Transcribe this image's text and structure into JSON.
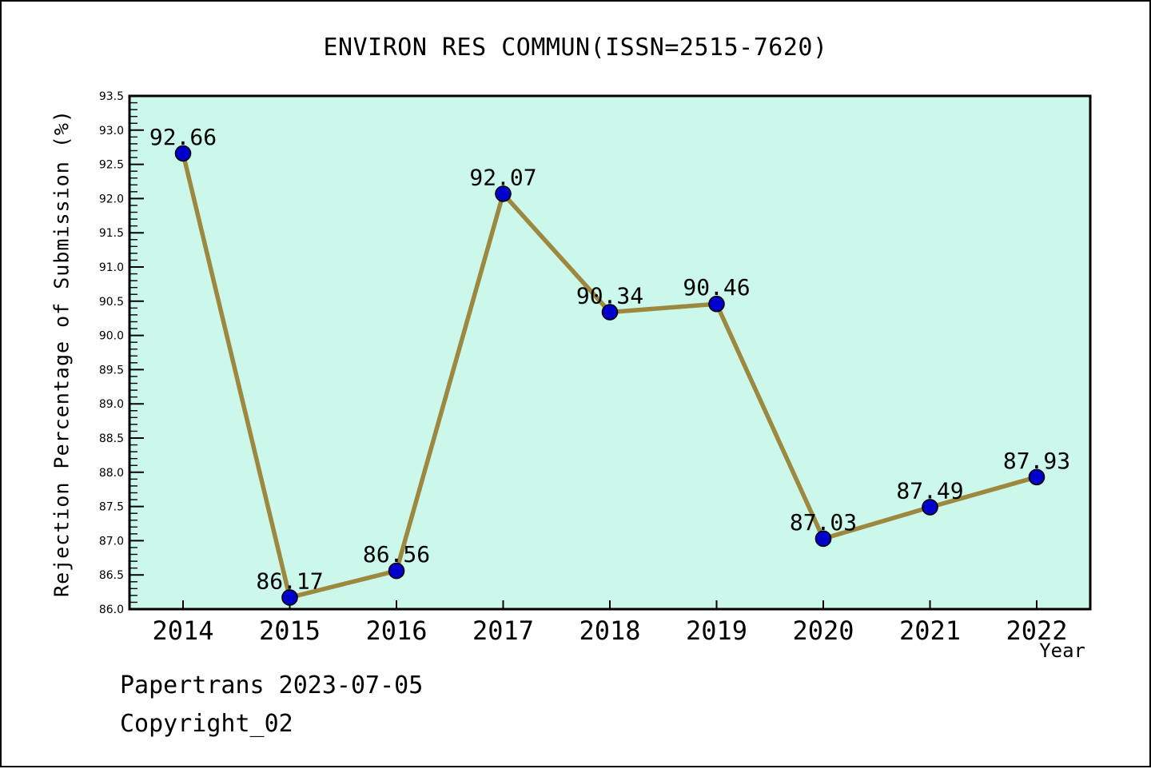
{
  "title": "ENVIRON RES COMMUN(ISSN=2515-7620)",
  "footer": {
    "line1": "Papertrans 2023-07-05",
    "line2": "Copyright_02"
  },
  "chart_data": {
    "type": "line",
    "title": "ENVIRON RES COMMUN(ISSN=2515-7620)",
    "xlabel": "Year",
    "ylabel": "Rejection Percentage of Submission (%)",
    "categories": [
      "2014",
      "2015",
      "2016",
      "2017",
      "2018",
      "2019",
      "2020",
      "2021",
      "2022"
    ],
    "values": [
      92.66,
      86.17,
      86.56,
      92.07,
      90.34,
      90.46,
      87.03,
      87.49,
      87.93
    ],
    "point_labels": [
      "92.66",
      "86.17",
      "86.56",
      "92.07",
      "90.34",
      "90.46",
      "87.03",
      "87.49",
      "87.93"
    ],
    "ylim": [
      86.0,
      93.5
    ],
    "ytick_major_step": 0.5,
    "ytick_minor_step": 0.1,
    "ytick_labels": [
      "86.0",
      "86.5",
      "87.0",
      "87.5",
      "88.0",
      "88.5",
      "89.0",
      "89.5",
      "90.0",
      "90.5",
      "91.0",
      "91.5",
      "92.0",
      "92.5",
      "93.0",
      "93.5"
    ],
    "grid": false,
    "legend": null,
    "colors": {
      "line": "#9C883E",
      "marker_fill": "#0000CD",
      "marker_edge": "#000000",
      "plot_bg": "#CCF8EB",
      "frame": "#000000",
      "text": "#000000",
      "page_bg": "#FFFFFF"
    }
  }
}
